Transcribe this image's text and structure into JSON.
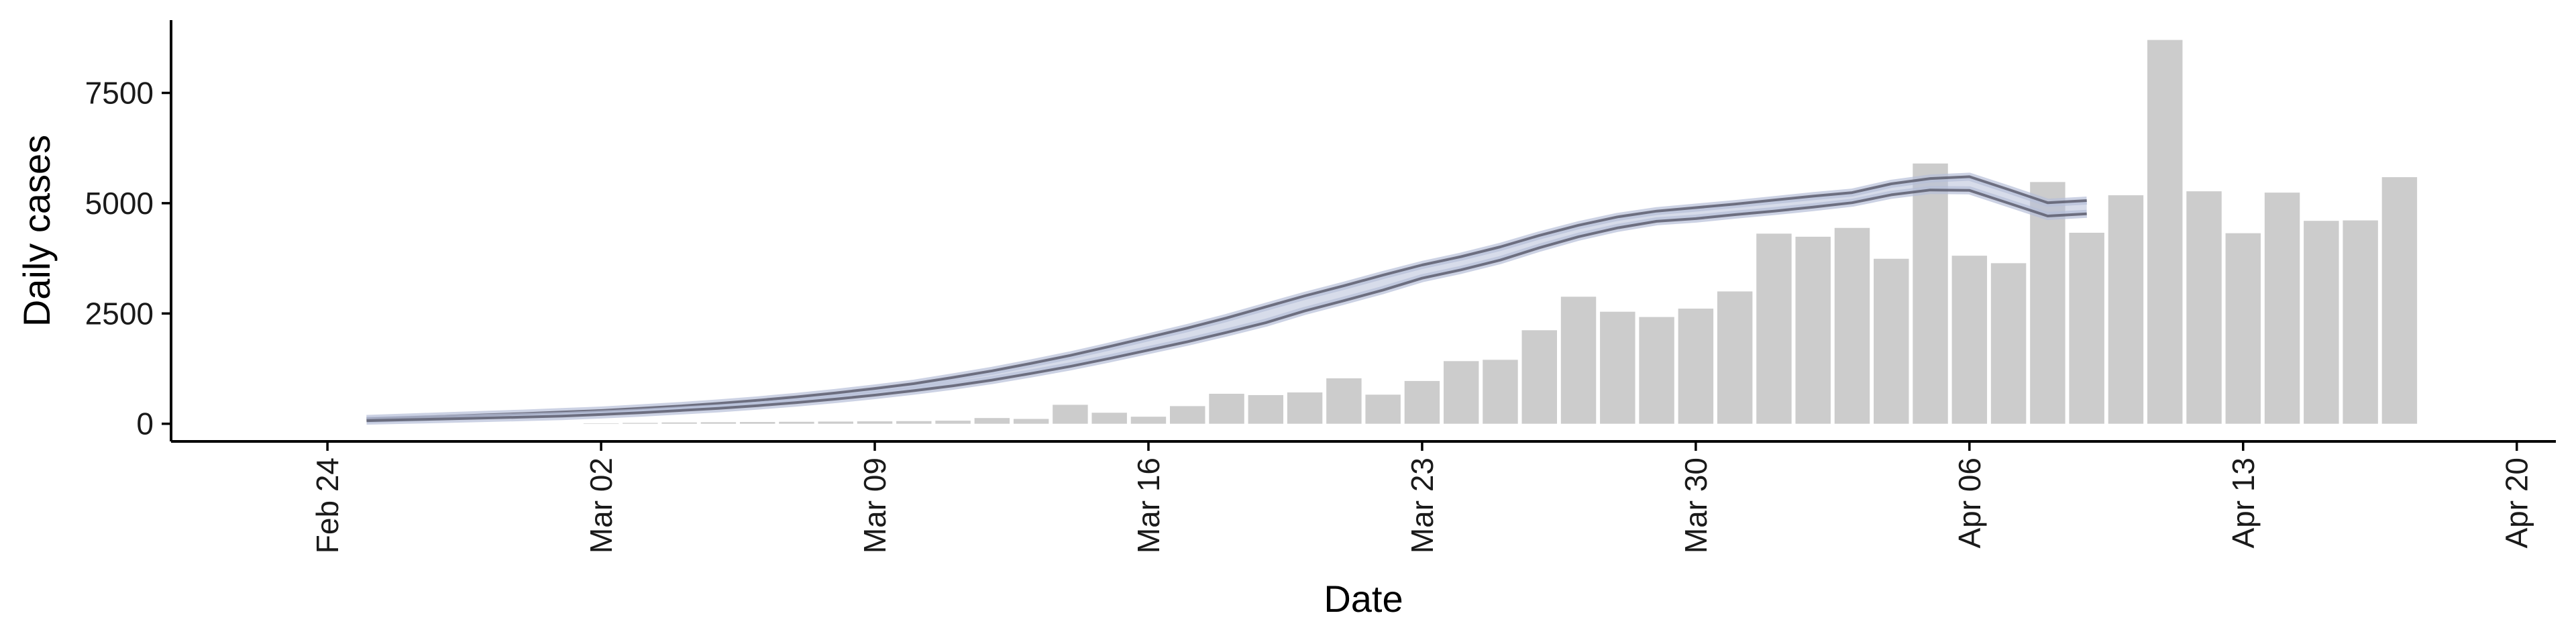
{
  "chart_data": {
    "type": "bar",
    "xlabel": "Date",
    "ylabel": "Daily cases",
    "xlim": [
      "2020-02-20",
      "2020-04-21"
    ],
    "ylim": [
      -400,
      9150
    ],
    "x_ticks": [
      "2020-02-24",
      "2020-03-02",
      "2020-03-09",
      "2020-03-16",
      "2020-03-23",
      "2020-03-30",
      "2020-04-06",
      "2020-04-13",
      "2020-04-20"
    ],
    "x_tick_labels": [
      "Feb 24",
      "Mar 02",
      "Mar 09",
      "Mar 16",
      "Mar 23",
      "Mar 30",
      "Apr 06",
      "Apr 13",
      "Apr 20"
    ],
    "y_ticks": [
      0,
      2500,
      5000,
      7500
    ],
    "y_tick_labels": [
      "0",
      "2500",
      "5000",
      "7500"
    ],
    "grid": false,
    "legend": "none",
    "bar_series": {
      "dates": [
        "2020-03-02",
        "2020-03-03",
        "2020-03-04",
        "2020-03-05",
        "2020-03-06",
        "2020-03-07",
        "2020-03-08",
        "2020-03-09",
        "2020-03-10",
        "2020-03-11",
        "2020-03-12",
        "2020-03-13",
        "2020-03-14",
        "2020-03-15",
        "2020-03-16",
        "2020-03-17",
        "2020-03-18",
        "2020-03-19",
        "2020-03-20",
        "2020-03-21",
        "2020-03-22",
        "2020-03-23",
        "2020-03-24",
        "2020-03-25",
        "2020-03-26",
        "2020-03-27",
        "2020-03-28",
        "2020-03-29",
        "2020-03-30",
        "2020-03-31",
        "2020-04-01",
        "2020-04-02",
        "2020-04-03",
        "2020-04-04",
        "2020-04-05",
        "2020-04-06",
        "2020-04-07",
        "2020-04-08",
        "2020-04-09",
        "2020-04-10",
        "2020-04-11",
        "2020-04-12",
        "2020-04-13",
        "2020-04-14",
        "2020-04-15",
        "2020-04-16",
        "2020-04-17",
        "2020-04-18"
      ],
      "values": [
        10,
        20,
        30,
        35,
        40,
        45,
        50,
        55,
        60,
        70,
        130,
        110,
        430,
        250,
        160,
        400,
        680,
        650,
        710,
        1030,
        660,
        970,
        1420,
        1450,
        2120,
        2880,
        2540,
        2420,
        2610,
        3000,
        4310,
        4240,
        4440,
        3740,
        5900,
        3810,
        3640,
        5480,
        4330,
        5180,
        8700,
        5270,
        4320,
        5240,
        4600,
        4610,
        5590,
        0
      ],
      "color": "#cccccc"
    },
    "band_series": {
      "dates": [
        "2020-02-25",
        "2020-02-26",
        "2020-02-27",
        "2020-02-28",
        "2020-02-29",
        "2020-03-01",
        "2020-03-02",
        "2020-03-03",
        "2020-03-04",
        "2020-03-05",
        "2020-03-06",
        "2020-03-07",
        "2020-03-08",
        "2020-03-09",
        "2020-03-10",
        "2020-03-11",
        "2020-03-12",
        "2020-03-13",
        "2020-03-14",
        "2020-03-15",
        "2020-03-16",
        "2020-03-17",
        "2020-03-18",
        "2020-03-19",
        "2020-03-20",
        "2020-03-21",
        "2020-03-22",
        "2020-03-23",
        "2020-03-24",
        "2020-03-25",
        "2020-03-26",
        "2020-03-27",
        "2020-03-28",
        "2020-03-29",
        "2020-03-30",
        "2020-03-31",
        "2020-04-01",
        "2020-04-02",
        "2020-04-03",
        "2020-04-04",
        "2020-04-05",
        "2020-04-06",
        "2020-04-07",
        "2020-04-08",
        "2020-04-09"
      ],
      "upper": [
        110,
        140,
        170,
        200,
        230,
        265,
        300,
        350,
        400,
        460,
        530,
        610,
        700,
        800,
        910,
        1050,
        1200,
        1370,
        1550,
        1750,
        1960,
        2170,
        2400,
        2650,
        2900,
        3130,
        3370,
        3600,
        3790,
        4010,
        4270,
        4500,
        4690,
        4820,
        4900,
        4980,
        5070,
        5160,
        5240,
        5440,
        5560,
        5600,
        5310,
        5010,
        5060
      ],
      "lower": [
        70,
        90,
        110,
        130,
        150,
        175,
        210,
        250,
        300,
        350,
        410,
        480,
        560,
        650,
        750,
        860,
        990,
        1140,
        1300,
        1480,
        1670,
        1860,
        2070,
        2290,
        2560,
        2790,
        3030,
        3300,
        3490,
        3710,
        3990,
        4240,
        4440,
        4590,
        4650,
        4740,
        4820,
        4910,
        5010,
        5190,
        5300,
        5290,
        5000,
        4710,
        4760
      ],
      "colors": [
        "#5d5e6f",
        "#b7bfd8"
      ]
    }
  }
}
